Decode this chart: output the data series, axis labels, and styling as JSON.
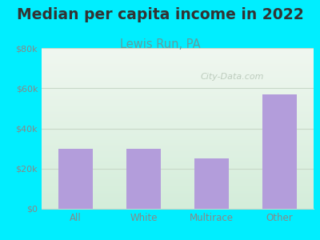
{
  "title": "Median per capita income in 2022",
  "subtitle": "Lewis Run, PA",
  "categories": [
    "All",
    "White",
    "Multirace",
    "Other"
  ],
  "values": [
    30000,
    30000,
    25000,
    57000
  ],
  "bar_color": "#b39ddb",
  "title_fontsize": 13.5,
  "title_color": "#333333",
  "subtitle_fontsize": 10.5,
  "subtitle_color": "#5f9ea0",
  "tick_label_color": "#888888",
  "background_outer": "#00eeff",
  "background_inner_top": "#d4edda",
  "background_inner_bottom": "#f0f7f0",
  "ylim": [
    0,
    80000
  ],
  "yticks": [
    0,
    20000,
    40000,
    60000,
    80000
  ],
  "ytick_labels": [
    "$0",
    "$20k",
    "$40k",
    "$60k",
    "$80k"
  ],
  "watermark": "City-Data.com",
  "grid_color": "#c8d8c8"
}
